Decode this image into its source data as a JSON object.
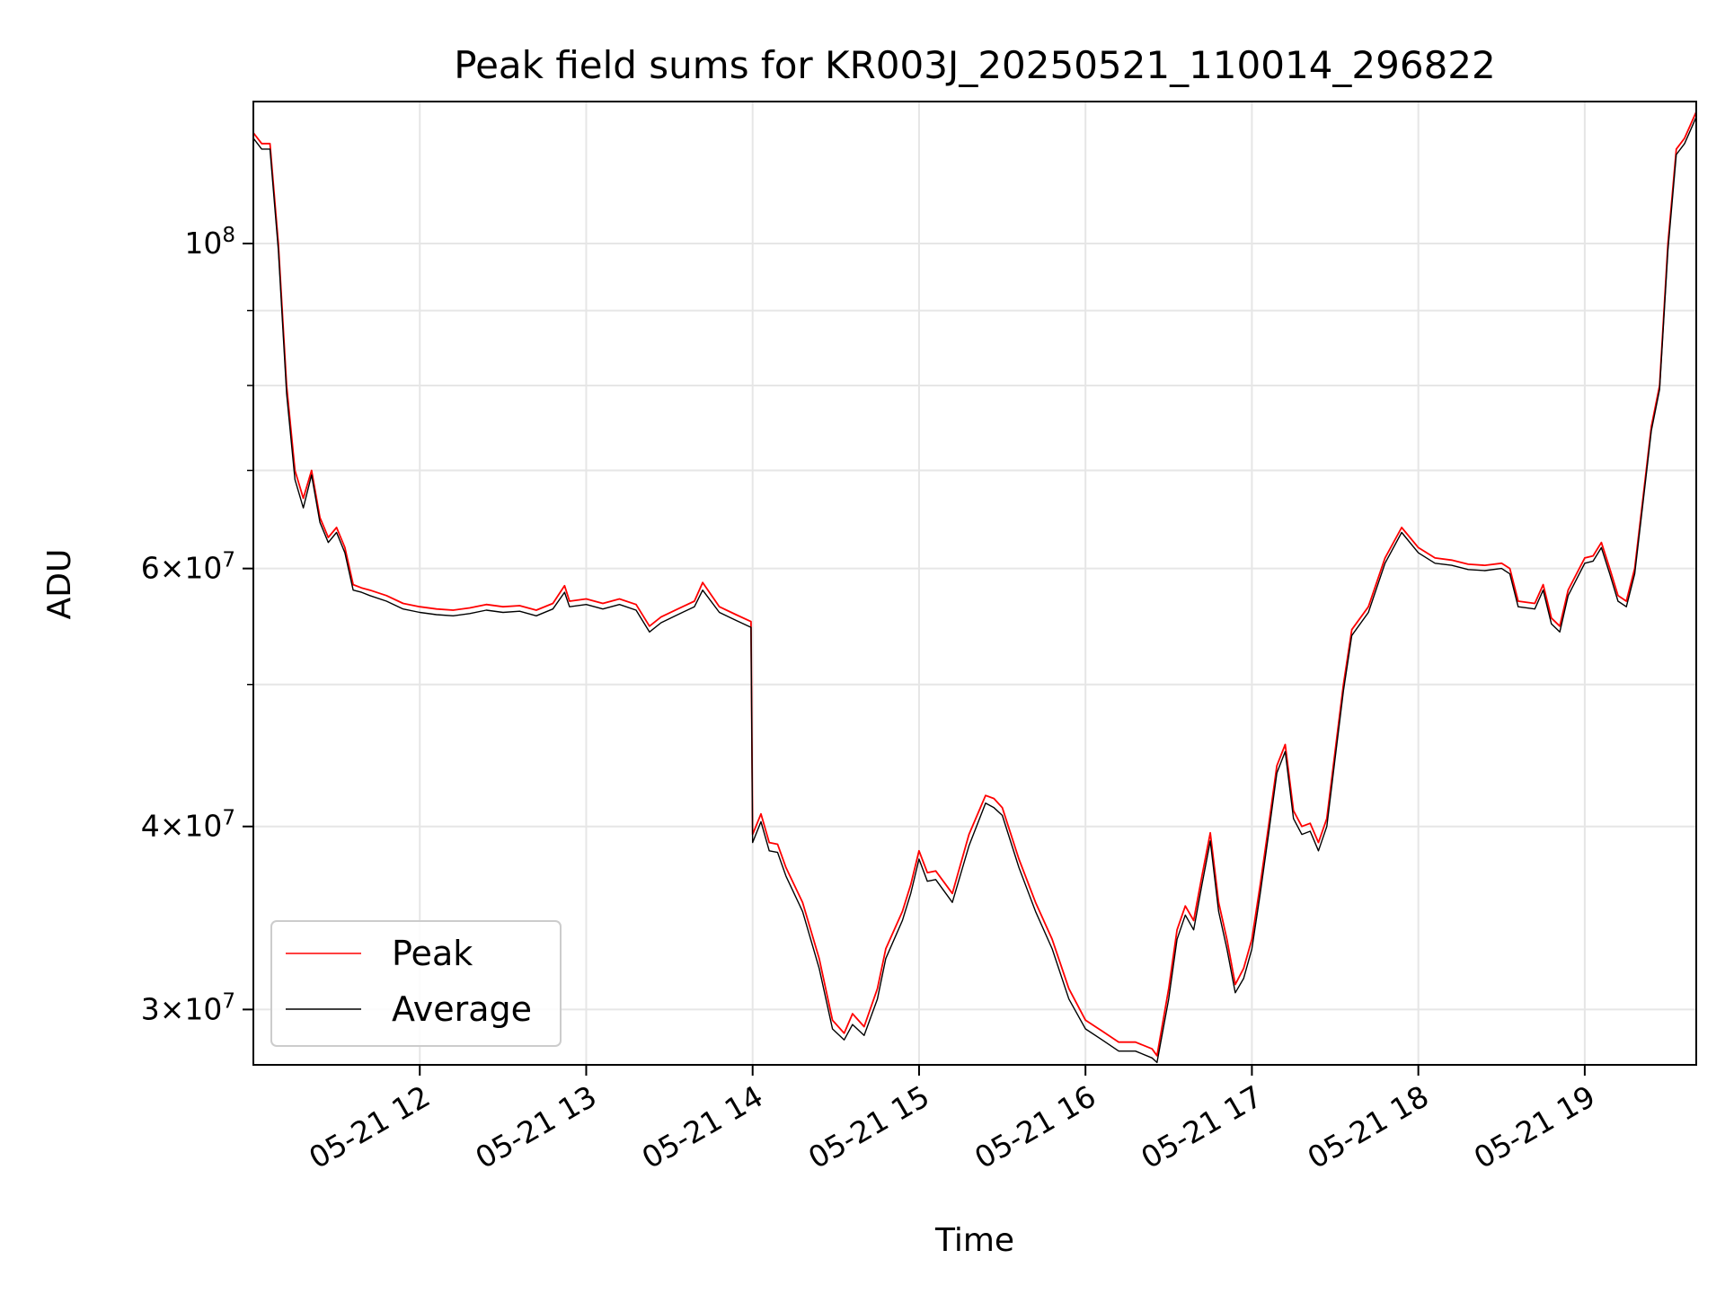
{
  "chart_data": {
    "type": "line",
    "title": "Peak field sums for KR003J_20250521_110014_296822",
    "xlabel": "Time",
    "ylabel": "ADU",
    "x_unit": "hour of 2025-05-21",
    "xlim": [
      11.0,
      19.67
    ],
    "ylim": [
      27500000,
      125000000
    ],
    "yscale": "log",
    "grid": true,
    "legend_position": "lower-left",
    "x_ticks": [
      {
        "value": 12,
        "label": "05-21 12"
      },
      {
        "value": 13,
        "label": "05-21 13"
      },
      {
        "value": 14,
        "label": "05-21 14"
      },
      {
        "value": 15,
        "label": "05-21 15"
      },
      {
        "value": 16,
        "label": "05-21 16"
      },
      {
        "value": 17,
        "label": "05-21 17"
      },
      {
        "value": 18,
        "label": "05-21 18"
      },
      {
        "value": 19,
        "label": "05-21 19"
      }
    ],
    "y_major_ticks": [
      {
        "value": 30000000,
        "base": "3",
        "mult": "×",
        "exp_base": "10",
        "exp": "7"
      },
      {
        "value": 40000000,
        "base": "4",
        "mult": "×",
        "exp_base": "10",
        "exp": "7"
      },
      {
        "value": 60000000,
        "base": "6",
        "mult": "×",
        "exp_base": "10",
        "exp": "7"
      },
      {
        "value": 100000000,
        "base": "",
        "mult": "",
        "exp_base": "10",
        "exp": "8"
      }
    ],
    "y_minor_gridlines": [
      50000000,
      70000000,
      80000000,
      90000000
    ],
    "x": [
      11.0,
      11.05,
      11.1,
      11.15,
      11.2,
      11.25,
      11.3,
      11.35,
      11.4,
      11.45,
      11.5,
      11.55,
      11.6,
      11.65,
      11.7,
      11.8,
      11.9,
      12.0,
      12.1,
      12.2,
      12.3,
      12.4,
      12.5,
      12.6,
      12.7,
      12.8,
      12.87,
      12.9,
      13.0,
      13.1,
      13.2,
      13.3,
      13.38,
      13.45,
      13.55,
      13.65,
      13.7,
      13.8,
      13.9,
      13.99,
      14.0,
      14.05,
      14.1,
      14.15,
      14.2,
      14.3,
      14.4,
      14.48,
      14.55,
      14.6,
      14.67,
      14.75,
      14.8,
      14.9,
      14.95,
      15.0,
      15.05,
      15.1,
      15.2,
      15.3,
      15.4,
      15.45,
      15.5,
      15.6,
      15.7,
      15.8,
      15.9,
      16.0,
      16.1,
      16.2,
      16.3,
      16.4,
      16.43,
      16.5,
      16.55,
      16.6,
      16.65,
      16.7,
      16.75,
      16.8,
      16.85,
      16.9,
      16.95,
      17.0,
      17.05,
      17.1,
      17.15,
      17.2,
      17.25,
      17.3,
      17.35,
      17.4,
      17.45,
      17.5,
      17.55,
      17.6,
      17.7,
      17.8,
      17.9,
      18.0,
      18.1,
      18.2,
      18.3,
      18.4,
      18.5,
      18.55,
      18.6,
      18.7,
      18.75,
      18.8,
      18.85,
      18.9,
      19.0,
      19.05,
      19.1,
      19.15,
      19.2,
      19.25,
      19.3,
      19.35,
      19.4,
      19.45,
      19.5,
      19.55,
      19.6,
      19.67
    ],
    "series": [
      {
        "name": "Peak",
        "color": "#ff0000",
        "values": [
          119000000,
          117000000,
          117000000,
          100000000,
          80000000,
          70000000,
          67000000,
          70000000,
          65000000,
          63000000,
          64000000,
          62000000,
          58500000,
          58200000,
          58000000,
          57500000,
          56800000,
          56500000,
          56300000,
          56200000,
          56400000,
          56700000,
          56500000,
          56600000,
          56200000,
          56800000,
          58400000,
          57000000,
          57200000,
          56800000,
          57200000,
          56700000,
          54800000,
          55600000,
          56300000,
          57000000,
          58700000,
          56500000,
          55800000,
          55200000,
          39500000,
          40800000,
          39000000,
          38900000,
          37500000,
          35500000,
          32500000,
          29500000,
          28900000,
          29800000,
          29200000,
          31000000,
          33000000,
          35000000,
          36500000,
          38500000,
          37200000,
          37300000,
          36000000,
          39500000,
          42000000,
          41800000,
          41200000,
          38000000,
          35500000,
          33500000,
          31000000,
          29500000,
          29000000,
          28500000,
          28500000,
          28200000,
          27900000,
          31000000,
          34000000,
          35300000,
          34500000,
          37000000,
          39600000,
          35500000,
          33500000,
          31200000,
          32000000,
          33500000,
          36500000,
          40000000,
          44000000,
          45500000,
          41000000,
          40000000,
          40200000,
          39000000,
          40500000,
          45000000,
          50000000,
          54500000,
          56500000,
          61000000,
          64000000,
          62000000,
          61000000,
          60800000,
          60400000,
          60300000,
          60500000,
          60000000,
          57000000,
          56800000,
          58500000,
          55500000,
          54800000,
          58000000,
          61000000,
          61200000,
          62500000,
          60000000,
          57500000,
          57000000,
          60000000,
          67000000,
          75000000,
          80000000,
          100000000,
          116000000,
          118000000,
          123000000
        ]
      },
      {
        "name": "Average",
        "color": "#000000",
        "values": [
          118000000,
          116000000,
          116000000,
          99000000,
          79000000,
          69000000,
          66000000,
          69500000,
          64500000,
          62500000,
          63500000,
          61500000,
          58000000,
          57800000,
          57500000,
          57000000,
          56300000,
          56000000,
          55800000,
          55700000,
          55900000,
          56200000,
          56000000,
          56100000,
          55700000,
          56300000,
          57800000,
          56500000,
          56700000,
          56300000,
          56700000,
          56200000,
          54300000,
          55100000,
          55800000,
          56500000,
          58000000,
          56000000,
          55300000,
          54700000,
          39000000,
          40300000,
          38500000,
          38400000,
          37000000,
          35000000,
          32000000,
          29100000,
          28600000,
          29300000,
          28800000,
          30500000,
          32500000,
          34500000,
          36000000,
          38000000,
          36700000,
          36800000,
          35500000,
          38800000,
          41500000,
          41200000,
          40700000,
          37500000,
          35000000,
          33000000,
          30500000,
          29100000,
          28600000,
          28100000,
          28100000,
          27800000,
          27600000,
          30500000,
          33500000,
          34800000,
          34000000,
          36500000,
          39100000,
          35000000,
          33000000,
          30800000,
          31500000,
          33000000,
          36000000,
          39500000,
          43500000,
          45000000,
          40500000,
          39500000,
          39700000,
          38500000,
          40000000,
          44500000,
          49500000,
          54000000,
          56000000,
          60500000,
          63500000,
          61500000,
          60500000,
          60300000,
          59900000,
          59800000,
          60000000,
          59500000,
          56500000,
          56300000,
          58000000,
          55000000,
          54300000,
          57500000,
          60500000,
          60700000,
          62000000,
          59500000,
          57000000,
          56500000,
          59500000,
          66500000,
          74500000,
          79500000,
          99000000,
          115000000,
          117000000,
          122000000
        ]
      }
    ]
  }
}
